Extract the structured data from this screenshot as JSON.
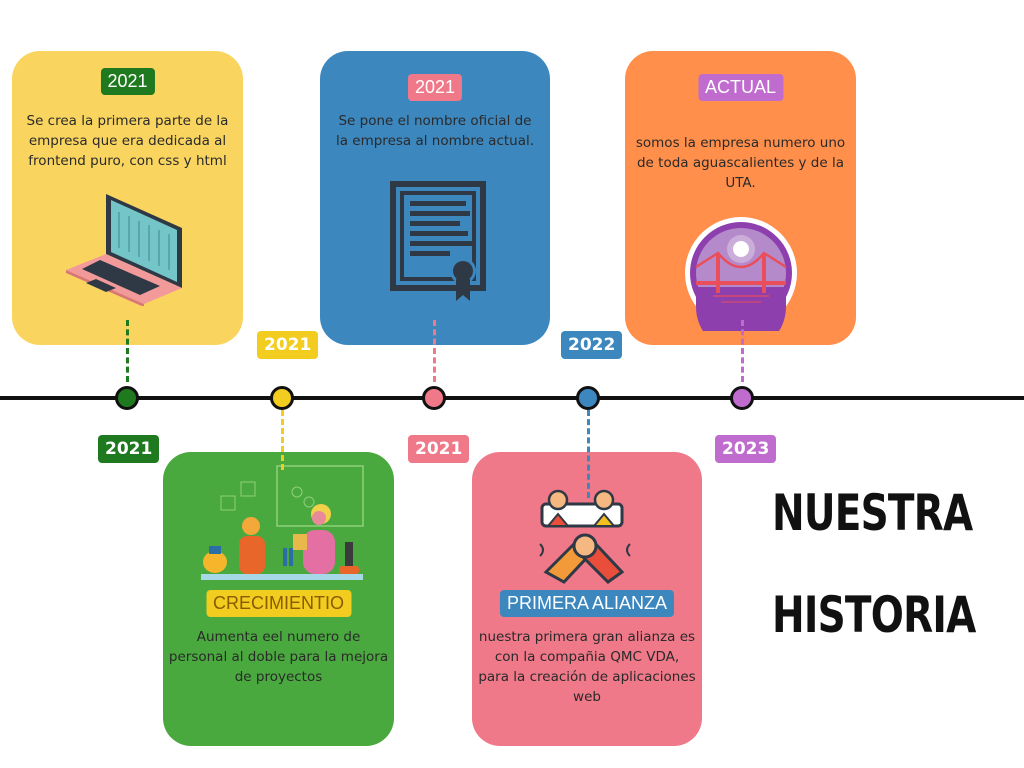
{
  "title": {
    "line1": "NUESTRA",
    "line2": "HISTORIA"
  },
  "colors": {
    "green": "#4aa93e",
    "dark_green": "#1f7a1f",
    "yellow": "#f9d55f",
    "gold": "#f2cc1f",
    "blue": "#3d87bf",
    "pink": "#ef7889",
    "orange": "#ff8f4a",
    "purple": "#c06ccf"
  },
  "cards": [
    {
      "badge": "2021",
      "text": "Se crea la primera parte de la empresa que era dedicada al frontend puro, con css y html",
      "icon": "laptop-icon"
    },
    {
      "badge": "CRECIMIENTIO",
      "text": "Aumenta eel numero de personal al doble para la mejora de proyectos",
      "icon": "lab-team-icon"
    },
    {
      "badge": "2021",
      "text": "Se pone el nombre oficial de la empresa al nombre actual.",
      "icon": "certificate-icon"
    },
    {
      "badge": "PRIMERA ALIANZA",
      "text": "nuestra primera gran alianza es con la compañia QMC VDA, para la creación de aplicaciones web",
      "icon": "handshake-icon"
    },
    {
      "badge": "ACTUAL",
      "text": "somos la empresa numero uno de toda aguascalientes y de la UTA.",
      "icon": "bridge-icon"
    }
  ],
  "years": [
    "2021",
    "2021",
    "2021",
    "2022",
    "2023"
  ]
}
